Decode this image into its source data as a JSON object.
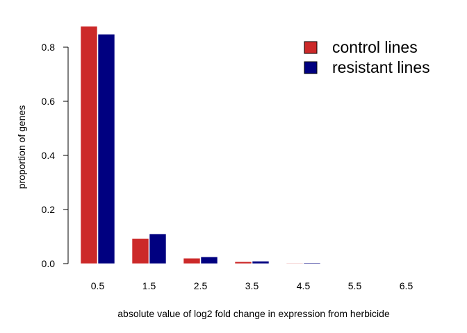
{
  "chart_data": {
    "type": "bar",
    "title": "",
    "xlabel": "absolute value of log2 fold change in expression from herbicide",
    "ylabel": "proportion of genes",
    "categories": [
      "0.5",
      "1.5",
      "2.5",
      "3.5",
      "4.5",
      "5.5",
      "6.5"
    ],
    "yticks": [
      "0.0",
      "0.2",
      "0.4",
      "0.6",
      "0.8"
    ],
    "ylim": [
      0,
      0.88
    ],
    "grid": false,
    "legend_position": "top-right",
    "series": [
      {
        "name": "control lines",
        "color": "#cc2929",
        "values": [
          0.877,
          0.093,
          0.02,
          0.007,
          0.002,
          0.001,
          0.0005
        ]
      },
      {
        "name": "resistant lines",
        "color": "#000080",
        "values": [
          0.848,
          0.11,
          0.025,
          0.009,
          0.003,
          0.001,
          0.0005
        ]
      }
    ]
  }
}
